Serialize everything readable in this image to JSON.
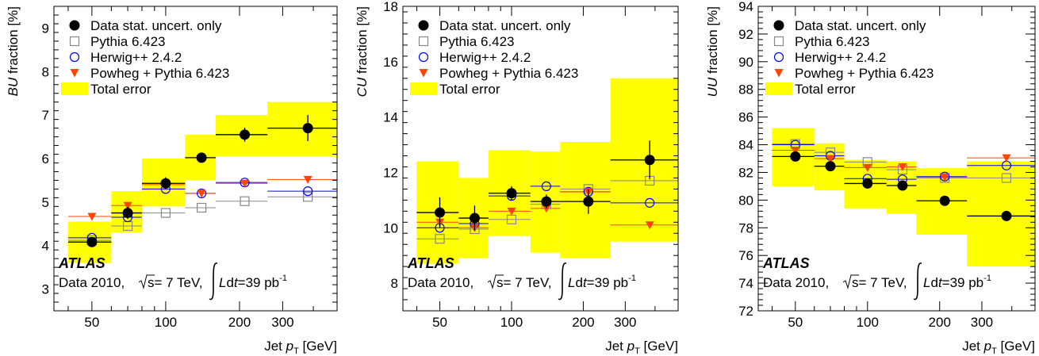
{
  "legend": {
    "data_label": "Data stat. uncert. only",
    "pythia_label": "Pythia 6.423",
    "herwig_label": "Herwig++ 2.4.2",
    "powheg_label": "Powheg + Pythia 6.423",
    "total_error_label": "Total error"
  },
  "atlas_label": "ATLAS",
  "data_text_prefix": "Data 2010,",
  "sqrt_s_text": "s= 7 TeV,",
  "lumi_text": "Ldt=39 pb",
  "lumi_exponent": "-1",
  "x_axis_label": "Jet",
  "x_axis_var": "p",
  "x_axis_sub": "T",
  "x_axis_unit": "[GeV]",
  "colors": {
    "band": "#ffff00",
    "pythia": "#888888",
    "herwig": "#0000ff",
    "powheg": "#ff4500",
    "data": "#000000"
  },
  "chart_data": [
    {
      "type": "scatter",
      "ylabel_var": "BU",
      "ylabel_rest": "fraction [%]",
      "xscale": "log",
      "xlim": [
        35,
        500
      ],
      "ylim": [
        2.5,
        9.5
      ],
      "xticks": [
        50,
        100,
        200,
        300
      ],
      "yticks": [
        3,
        4,
        5,
        6,
        7,
        8,
        9
      ],
      "bins": [
        [
          40,
          60
        ],
        [
          60,
          80
        ],
        [
          80,
          120
        ],
        [
          120,
          160
        ],
        [
          160,
          260
        ],
        [
          260,
          500
        ]
      ],
      "x": [
        50,
        70,
        100,
        140,
        210,
        380
      ],
      "total_error": [
        [
          3.6,
          4.55
        ],
        [
          4.3,
          5.25
        ],
        [
          4.9,
          6.0
        ],
        [
          5.5,
          6.55
        ],
        [
          6.05,
          7.0
        ],
        [
          6.05,
          7.3
        ]
      ],
      "data": [
        4.08,
        4.75,
        5.43,
        6.02,
        6.55,
        6.7
      ],
      "data_err": [
        0.1,
        0.14,
        0.14,
        0.1,
        0.16,
        0.3
      ],
      "pythia": [
        4.12,
        4.45,
        4.75,
        4.87,
        5.02,
        5.12
      ],
      "herwig": [
        4.18,
        4.65,
        5.3,
        5.2,
        5.45,
        5.25
      ],
      "powheg": [
        4.67,
        4.92,
        5.4,
        5.2,
        5.43,
        5.52
      ]
    },
    {
      "type": "scatter",
      "ylabel_var": "CU",
      "ylabel_rest": "fraction [%]",
      "xscale": "log",
      "xlim": [
        35,
        500
      ],
      "ylim": [
        7,
        18
      ],
      "xticks": [
        50,
        100,
        200,
        300
      ],
      "yticks": [
        8,
        10,
        12,
        14,
        16,
        18
      ],
      "bins": [
        [
          40,
          60
        ],
        [
          60,
          80
        ],
        [
          80,
          120
        ],
        [
          120,
          160
        ],
        [
          160,
          260
        ],
        [
          260,
          500
        ]
      ],
      "x": [
        50,
        70,
        100,
        140,
        210,
        380
      ],
      "total_error": [
        [
          8.7,
          12.4
        ],
        [
          8.9,
          11.8
        ],
        [
          9.7,
          12.8
        ],
        [
          9.1,
          12.75
        ],
        [
          8.9,
          13.1
        ],
        [
          9.5,
          15.4
        ]
      ],
      "data": [
        10.55,
        10.35,
        11.25,
        10.95,
        10.95,
        12.45
      ],
      "data_err": [
        0.55,
        0.45,
        0.25,
        0.25,
        0.45,
        0.7
      ],
      "pythia": [
        9.6,
        9.95,
        10.3,
        10.85,
        11.4,
        11.7
      ],
      "herwig": [
        10.0,
        10.15,
        11.15,
        11.5,
        11.3,
        10.9
      ],
      "powheg": [
        10.2,
        10.0,
        10.6,
        10.7,
        11.3,
        10.1
      ]
    },
    {
      "type": "scatter",
      "ylabel_var": "UU",
      "ylabel_rest": "fraction [%]",
      "xscale": "log",
      "xlim": [
        35,
        500
      ],
      "ylim": [
        72,
        94
      ],
      "xticks": [
        50,
        100,
        200,
        300
      ],
      "yticks": [
        72,
        74,
        76,
        78,
        80,
        82,
        84,
        86,
        88,
        90,
        92,
        94
      ],
      "bins": [
        [
          40,
          60
        ],
        [
          60,
          80
        ],
        [
          80,
          120
        ],
        [
          120,
          160
        ],
        [
          160,
          260
        ],
        [
          260,
          500
        ]
      ],
      "x": [
        50,
        70,
        100,
        140,
        210,
        380
      ],
      "total_error": [
        [
          81.0,
          85.2
        ],
        [
          80.7,
          84.1
        ],
        [
          79.4,
          82.9
        ],
        [
          79.0,
          82.8
        ],
        [
          77.5,
          82.3
        ],
        [
          75.2,
          82.8
        ]
      ],
      "data": [
        83.15,
        82.45,
        81.2,
        81.05,
        79.95,
        78.85
      ],
      "data_err": [
        0.15,
        0.2,
        0.25,
        0.2,
        0.2,
        0.35
      ],
      "pythia": [
        84.05,
        83.45,
        82.75,
        82.2,
        81.6,
        81.6
      ],
      "herwig": [
        84.0,
        83.2,
        81.55,
        81.5,
        81.7,
        82.5
      ],
      "powheg": [
        83.6,
        83.0,
        82.35,
        82.4,
        81.65,
        83.05
      ]
    }
  ]
}
